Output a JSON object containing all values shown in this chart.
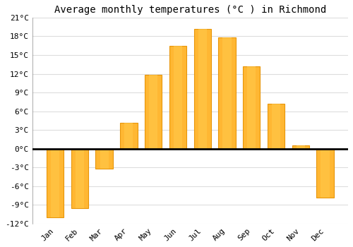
{
  "title": "Average monthly temperatures (°C ) in Richmond",
  "months": [
    "Jan",
    "Feb",
    "Mar",
    "Apr",
    "May",
    "Jun",
    "Jul",
    "Aug",
    "Sep",
    "Oct",
    "Nov",
    "Dec"
  ],
  "temperatures": [
    -11,
    -9.5,
    -3.2,
    4.2,
    11.8,
    16.5,
    19.2,
    17.8,
    13.2,
    7.2,
    0.5,
    -7.8
  ],
  "bar_color": "#FFA500",
  "bar_edge_color": "#B8860B",
  "background_color": "#FFFFFF",
  "plot_bg_color": "#FFFFFF",
  "grid_color": "#DDDDDD",
  "ylim": [
    -12,
    21
  ],
  "yticks": [
    -12,
    -9,
    -6,
    -3,
    0,
    3,
    6,
    9,
    12,
    15,
    18,
    21
  ],
  "zero_line_color": "#000000",
  "title_fontsize": 10,
  "tick_fontsize": 8,
  "bar_width": 0.7
}
